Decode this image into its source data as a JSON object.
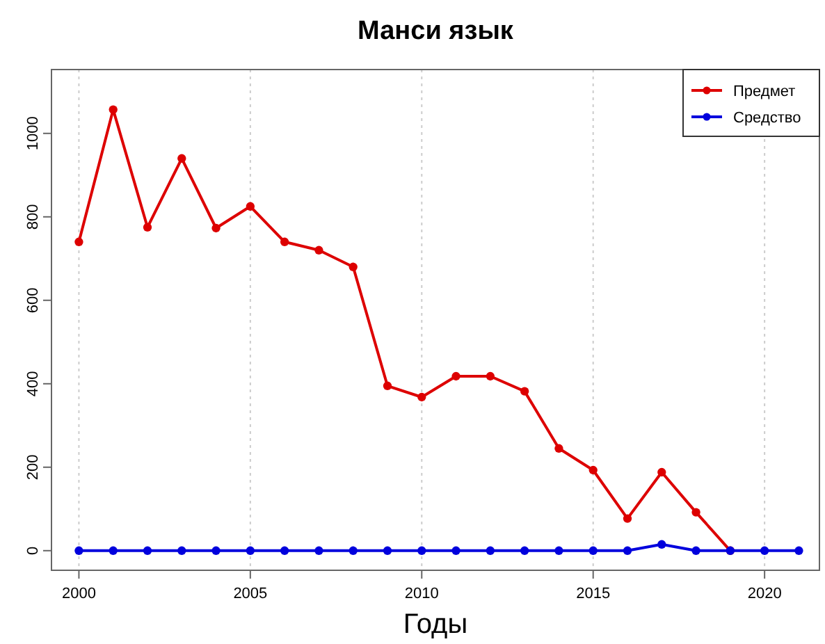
{
  "chart_data": {
    "type": "line",
    "title": "Манси язык",
    "xlabel": "Годы",
    "x": [
      2000,
      2001,
      2002,
      2003,
      2004,
      2005,
      2006,
      2007,
      2008,
      2009,
      2010,
      2011,
      2012,
      2013,
      2014,
      2015,
      2016,
      2017,
      2018,
      2019,
      2020,
      2021
    ],
    "series": [
      {
        "name": "Предмет",
        "color": "#dd0000",
        "values": [
          740,
          1057,
          775,
          940,
          773,
          825,
          740,
          720,
          680,
          395,
          368,
          418,
          418,
          382,
          245,
          193,
          77,
          188,
          92,
          0,
          null,
          null
        ]
      },
      {
        "name": "Средство",
        "color": "#0000dd",
        "values": [
          0,
          0,
          0,
          0,
          0,
          0,
          0,
          0,
          0,
          0,
          0,
          0,
          0,
          0,
          0,
          0,
          0,
          15,
          0,
          0,
          0,
          0
        ]
      }
    ],
    "xlim": [
      1999.2,
      2021.6
    ],
    "xticks": [
      2000,
      2005,
      2010,
      2015,
      2020
    ],
    "ylim": [
      -47,
      1153
    ],
    "yticks": [
      0,
      200,
      400,
      600,
      800,
      1000
    ],
    "grid": "x",
    "legend": "top right",
    "marker": "circle",
    "line_style": "solid"
  }
}
